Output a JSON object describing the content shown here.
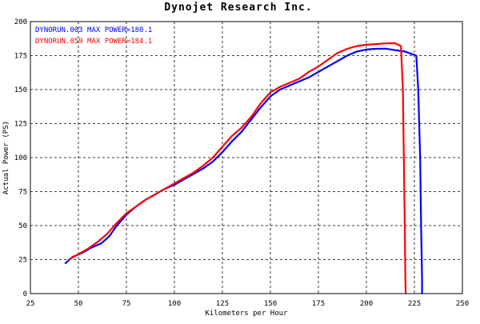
{
  "chart_data": {
    "type": "line",
    "title": "Dynojet  Research  Inc.",
    "xlabel": "Kilometers per Hour",
    "ylabel": "Actual Power (PS)",
    "xlim": [
      25,
      250
    ],
    "ylim": [
      0,
      200
    ],
    "xticks": [
      25,
      50,
      75,
      100,
      125,
      150,
      175,
      200,
      225,
      250
    ],
    "yticks": [
      0,
      25,
      50,
      75,
      100,
      125,
      150,
      175,
      200
    ],
    "grid": true,
    "legend_position": "top-left",
    "series": [
      {
        "name": "DYNORUN.003  MAX POWER=180.1",
        "color": "#0000ff",
        "x": [
          43,
          47,
          52,
          57,
          62,
          66,
          70,
          75,
          80,
          85,
          90,
          95,
          100,
          105,
          110,
          115,
          120,
          125,
          130,
          135,
          140,
          145,
          150,
          155,
          160,
          165,
          170,
          175,
          180,
          185,
          190,
          195,
          200,
          205,
          210,
          215,
          220,
          224,
          226,
          227,
          228,
          228.5,
          229,
          229
        ],
        "y": [
          22,
          27,
          30,
          34,
          37,
          42,
          50,
          58,
          64,
          69,
          73,
          77,
          80,
          84,
          88,
          92,
          97,
          104,
          112,
          119,
          128,
          137,
          145,
          150,
          153,
          156,
          159,
          163,
          167,
          171,
          175,
          178,
          179.5,
          180,
          180.1,
          179,
          178,
          176,
          175,
          150,
          100,
          50,
          10,
          0
        ]
      },
      {
        "name": "DYNORUN.059  MAX POWER=184.1",
        "color": "#ff0000",
        "x": [
          45,
          50,
          55,
          60,
          65,
          70,
          75,
          80,
          85,
          90,
          95,
          100,
          105,
          110,
          115,
          120,
          125,
          130,
          135,
          140,
          145,
          150,
          155,
          160,
          165,
          170,
          175,
          180,
          185,
          190,
          195,
          200,
          205,
          210,
          215,
          218,
          219,
          219.5,
          220,
          220.3,
          220.5
        ],
        "y": [
          25,
          29,
          33,
          38,
          44,
          52,
          59,
          64,
          69,
          73,
          77,
          81,
          85,
          89,
          94,
          100,
          108,
          116,
          122,
          130,
          140,
          148,
          152,
          155,
          158,
          163,
          167,
          172,
          177,
          180,
          182,
          183,
          183.5,
          184,
          184.1,
          182,
          150,
          100,
          50,
          10,
          0
        ]
      }
    ]
  }
}
